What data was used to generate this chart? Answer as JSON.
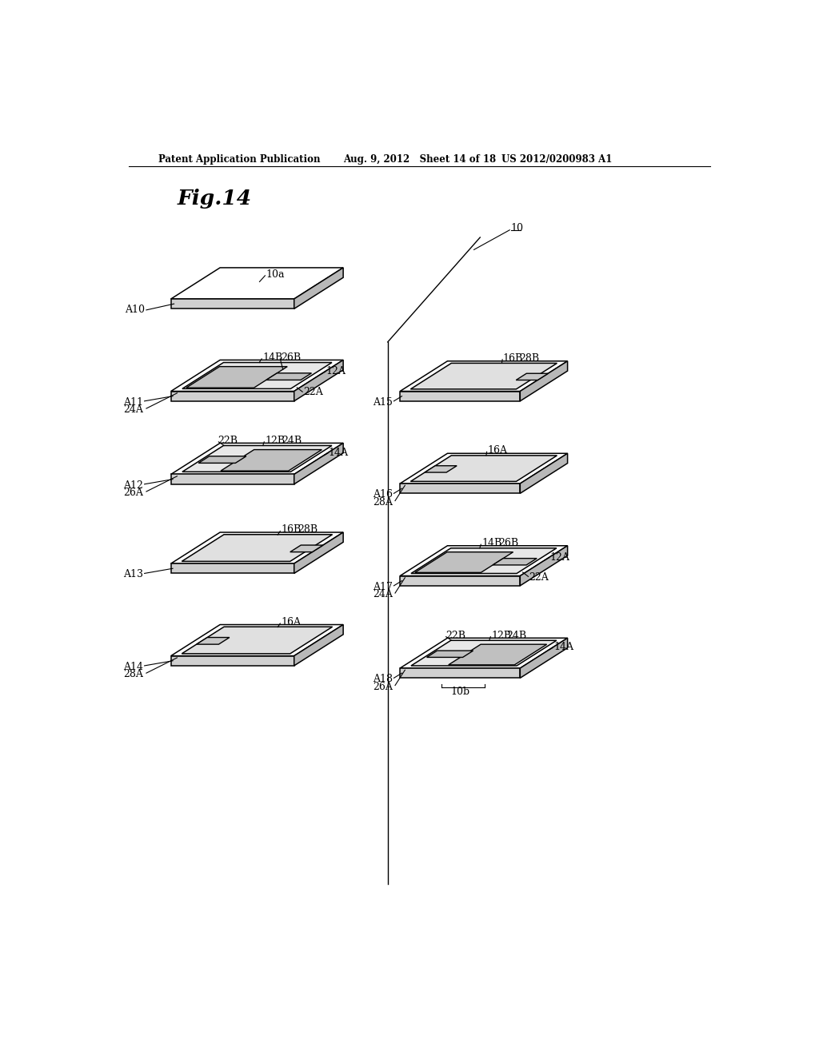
{
  "bg_color": "#ffffff",
  "title": "Fig.14",
  "header_left": "Patent Application Publication",
  "header_mid": "Aug. 9, 2012   Sheet 14 of 18",
  "header_right": "US 2012/0200983 A1",
  "figsize": [
    10.24,
    13.2
  ],
  "dpi": 100,
  "skx": 0.55,
  "sky": 0.35
}
